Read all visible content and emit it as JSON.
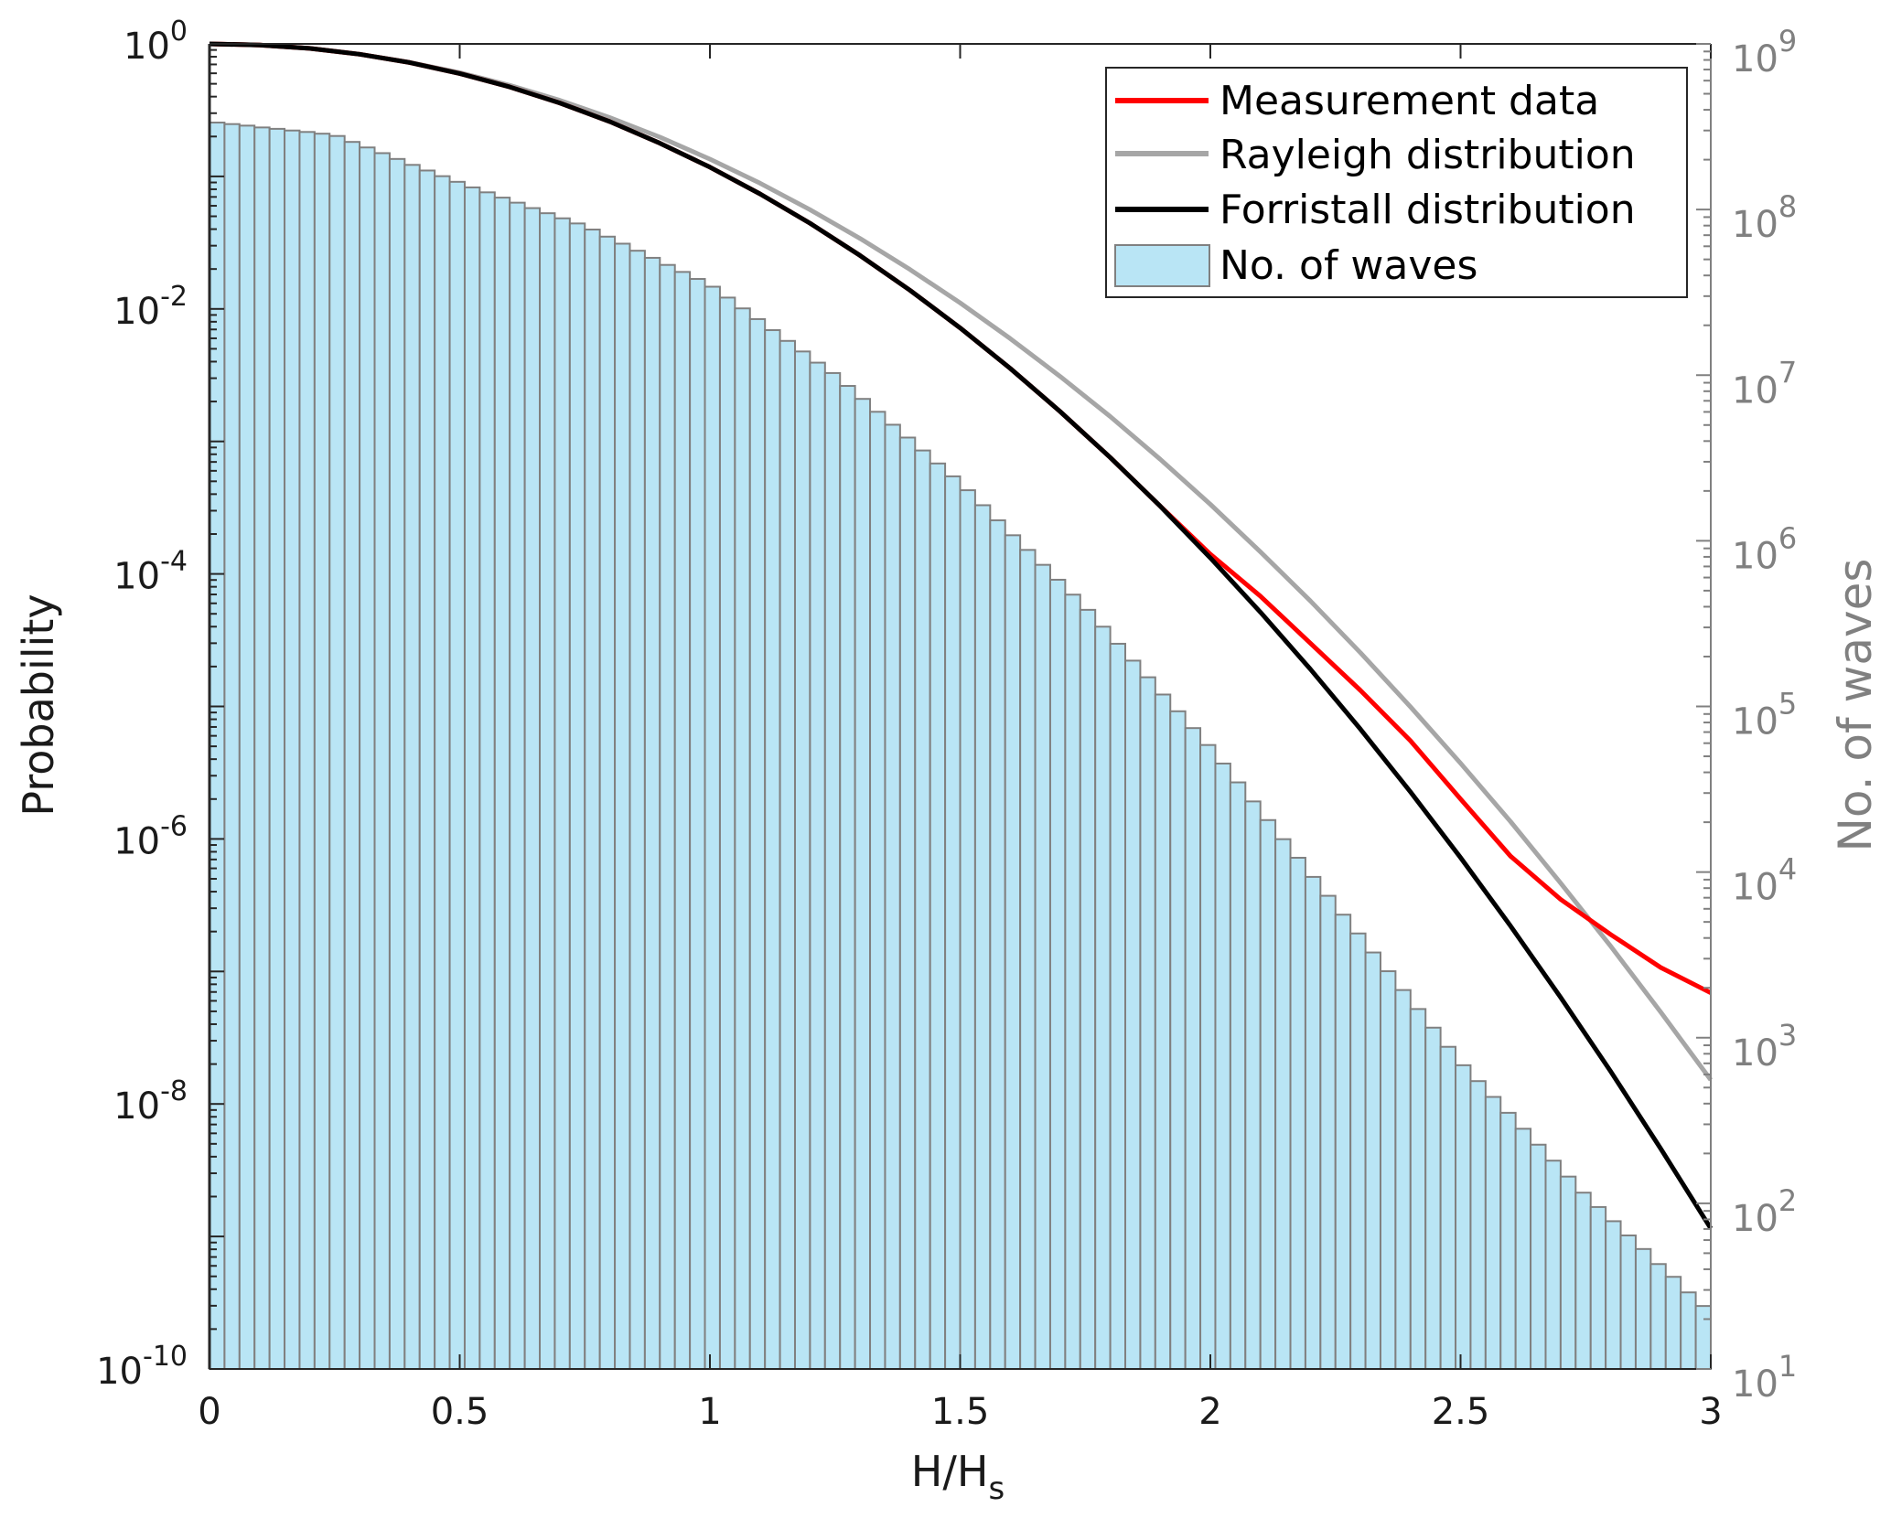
{
  "chart_data": {
    "type": "line+bar",
    "xlabel": "H/H",
    "xlabel_subscript": "s",
    "ylabel_left": "Probability",
    "ylabel_right": "No. of waves",
    "xlim": [
      0,
      3
    ],
    "ylim_left": [
      1e-10,
      1
    ],
    "ylim_right": [
      10,
      1000000000.0
    ],
    "yscale_left": "log",
    "yscale_right": "log",
    "grid": false,
    "legend_placement": "top-right",
    "x_ticks": [
      "0",
      "0.5",
      "1",
      "1.5",
      "2",
      "2.5",
      "3"
    ],
    "x_tick_values": [
      0,
      0.5,
      1,
      1.5,
      2,
      2.5,
      3
    ],
    "left_ticks": [
      {
        "base": "10",
        "exp": "0",
        "value": 1
      },
      {
        "base": "10",
        "exp": "-2",
        "value": 0.01
      },
      {
        "base": "10",
        "exp": "-4",
        "value": 0.0001
      },
      {
        "base": "10",
        "exp": "-6",
        "value": 1e-06
      },
      {
        "base": "10",
        "exp": "-8",
        "value": 1e-08
      },
      {
        "base": "10",
        "exp": "-10",
        "value": 1e-10
      }
    ],
    "right_ticks": [
      {
        "base": "10",
        "exp": "9",
        "value": 1000000000.0
      },
      {
        "base": "10",
        "exp": "8",
        "value": 100000000.0
      },
      {
        "base": "10",
        "exp": "7",
        "value": 10000000.0
      },
      {
        "base": "10",
        "exp": "6",
        "value": 1000000.0
      },
      {
        "base": "10",
        "exp": "5",
        "value": 100000.0
      },
      {
        "base": "10",
        "exp": "4",
        "value": 10000.0
      },
      {
        "base": "10",
        "exp": "3",
        "value": 1000.0
      },
      {
        "base": "10",
        "exp": "2",
        "value": 100.0
      },
      {
        "base": "10",
        "exp": "1",
        "value": 10.0
      }
    ],
    "colors": {
      "measurement": "#ff0000",
      "rayleigh": "#a6a6a6",
      "forristall": "#000000",
      "bars_fill": "#b9e5f5",
      "bars_edge": "#808080",
      "right_axis": "#808080"
    },
    "legend": [
      {
        "label": "Measurement data",
        "key": "measurement"
      },
      {
        "label": "Rayleigh distribution",
        "key": "rayleigh"
      },
      {
        "label": "Forristall distribution",
        "key": "forristall"
      },
      {
        "label": "No. of waves",
        "key": "bars"
      }
    ],
    "histogram": {
      "axis": "right",
      "bin_width": 0.03,
      "bin_start": 0,
      "counts": [
        335000000,
        328000000,
        321000000,
        313000000,
        307000000,
        300000000,
        294000000,
        287000000,
        278000000,
        256000000,
        237000000,
        219000000,
        202000000,
        186000000,
        172000000,
        159000000,
        147000000,
        136000000,
        127000000,
        118000000,
        110000000,
        102000000,
        95000000,
        88500000,
        82400000,
        75700000,
        68600000,
        62200000,
        56400000,
        51100000,
        46300000,
        42000000,
        38100000,
        34200000,
        29400000,
        25300000,
        21800000,
        18700000,
        16100000,
        13900000,
        11900000,
        10300000,
        8610000,
        7190000,
        6010000,
        5020000,
        4200000,
        3510000,
        2930000,
        2450000,
        2020000,
        1640000,
        1330000,
        1080000,
        881000,
        716000,
        582000,
        473000,
        383000,
        303000,
        239000,
        189000,
        150000,
        118000,
        93500,
        74000,
        58500,
        45200,
        34800,
        26700,
        20600,
        15800,
        12200,
        9350,
        7190,
        5530,
        4260,
        3270,
        2520,
        1940,
        1490,
        1150,
        881,
        682,
        547,
        439,
        352,
        282,
        226,
        181,
        145,
        116,
        95,
        78,
        64,
        53,
        43,
        36,
        29,
        24
      ]
    },
    "x": [
      0,
      0.1,
      0.2,
      0.3,
      0.4,
      0.5,
      0.6,
      0.7,
      0.8,
      0.9,
      1.0,
      1.1,
      1.2,
      1.3,
      1.4,
      1.5,
      1.6,
      1.7,
      1.8,
      1.9,
      2.0,
      2.1,
      2.2,
      2.3,
      2.4,
      2.5,
      2.6,
      2.7,
      2.8,
      2.9,
      3.0
    ],
    "series": [
      {
        "name": "Measurement data",
        "key": "measurement",
        "axis": "left",
        "values": [
          1,
          0.981,
          0.925,
          0.836,
          0.723,
          0.598,
          0.473,
          0.358,
          0.259,
          0.178,
          0.1175,
          0.0738,
          0.0443,
          0.0253,
          0.0138,
          0.00718,
          0.00356,
          0.00168,
          0.000756,
          0.000324,
          0.000141,
          6.8e-05,
          3e-05,
          1.32e-05,
          5.5e-06,
          2e-06,
          7.4e-07,
          3.5e-07,
          1.9e-07,
          1.07e-07,
          6.9e-08
        ]
      },
      {
        "name": "Rayleigh distribution",
        "key": "rayleigh",
        "axis": "left",
        "values": [
          1,
          0.98,
          0.923,
          0.835,
          0.726,
          0.607,
          0.487,
          0.375,
          0.278,
          0.198,
          0.135,
          0.0889,
          0.0561,
          0.034,
          0.0198,
          0.0111,
          0.00598,
          0.00309,
          0.00154,
          0.000732,
          0.000335,
          0.000147,
          6.25e-05,
          2.54e-05,
          9.92e-06,
          3.73e-06,
          1.35e-06,
          4.64e-07,
          1.55e-07,
          4.93e-08,
          1.52e-08
        ]
      },
      {
        "name": "Forristall distribution",
        "key": "forristall",
        "axis": "left",
        "values": [
          1,
          0.981,
          0.925,
          0.836,
          0.723,
          0.598,
          0.473,
          0.358,
          0.259,
          0.178,
          0.1175,
          0.0738,
          0.0443,
          0.0253,
          0.0138,
          0.00718,
          0.00356,
          0.00168,
          0.000756,
          0.000324,
          0.000132,
          5.15e-05,
          1.91e-05,
          6.73e-06,
          2.26e-06,
          7.23e-07,
          2.2e-07,
          6.37e-08,
          1.76e-08,
          4.6e-09,
          1.15e-09
        ]
      }
    ]
  }
}
